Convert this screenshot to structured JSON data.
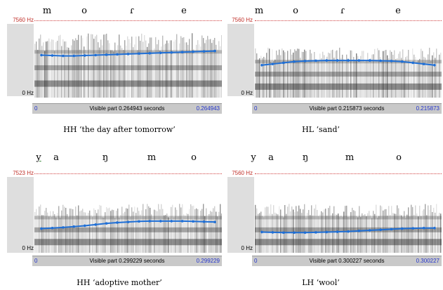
{
  "figure": {
    "panels": [
      {
        "segments": [
          "m",
          "o",
          "ɾ",
          "e"
        ],
        "y_top": "7560 Hz",
        "y_bottom": "0 Hz",
        "time_start": "0",
        "visible_label": "Visible part 0.264943 seconds",
        "time_end": "0.264943",
        "caption": "HH ‘the day after tomorrow’",
        "pitch_contour": [
          0.44,
          0.445,
          0.45,
          0.45,
          0.445,
          0.44,
          0.435,
          0.43,
          0.425,
          0.42,
          0.415,
          0.41,
          0.405,
          0.4,
          0.395,
          0.39,
          0.385
        ]
      },
      {
        "segments": [
          "m",
          "o",
          "ɾ",
          "e"
        ],
        "y_top": "7560 Hz",
        "y_bottom": "0 Hz",
        "time_start": "0",
        "visible_label": "Visible part 0.215873 seconds",
        "time_end": "0.215873",
        "caption": "HL ‘sand’",
        "pitch_contour": [
          0.45,
          0.43,
          0.41,
          0.39,
          0.38,
          0.375,
          0.37,
          0.37,
          0.37,
          0.37,
          0.37,
          0.375,
          0.38,
          0.39,
          0.41,
          0.43,
          0.45
        ]
      },
      {
        "segments": [
          "y",
          "a",
          "ŋ",
          "m",
          "o"
        ],
        "y_top": "7523 Hz",
        "y_bottom": "0 Hz",
        "time_start": "0",
        "visible_label": "Visible part 0.299229 seconds",
        "time_end": "0.299229",
        "caption": "HH ‘adoptive mother’",
        "pitch_contour": [
          0.58,
          0.57,
          0.56,
          0.545,
          0.53,
          0.51,
          0.49,
          0.475,
          0.465,
          0.455,
          0.45,
          0.45,
          0.45,
          0.45,
          0.455,
          0.46,
          0.465
        ]
      },
      {
        "segments": [
          "y",
          "a",
          "ŋ",
          "m",
          "o"
        ],
        "y_top": "7560 Hz",
        "y_bottom": "0 Hz",
        "time_start": "0",
        "visible_label": "Visible part 0.300227 seconds",
        "time_end": "0.300227",
        "caption": "LH ‘wool’",
        "pitch_contour": [
          0.64,
          0.645,
          0.65,
          0.65,
          0.65,
          0.645,
          0.64,
          0.635,
          0.63,
          0.62,
          0.61,
          0.6,
          0.59,
          0.58,
          0.575,
          0.57,
          0.57
        ]
      }
    ],
    "colors": {
      "pitch_line": "#1f6fd6",
      "hz_label": "#c0302a",
      "time_label": "#2233cc"
    }
  }
}
